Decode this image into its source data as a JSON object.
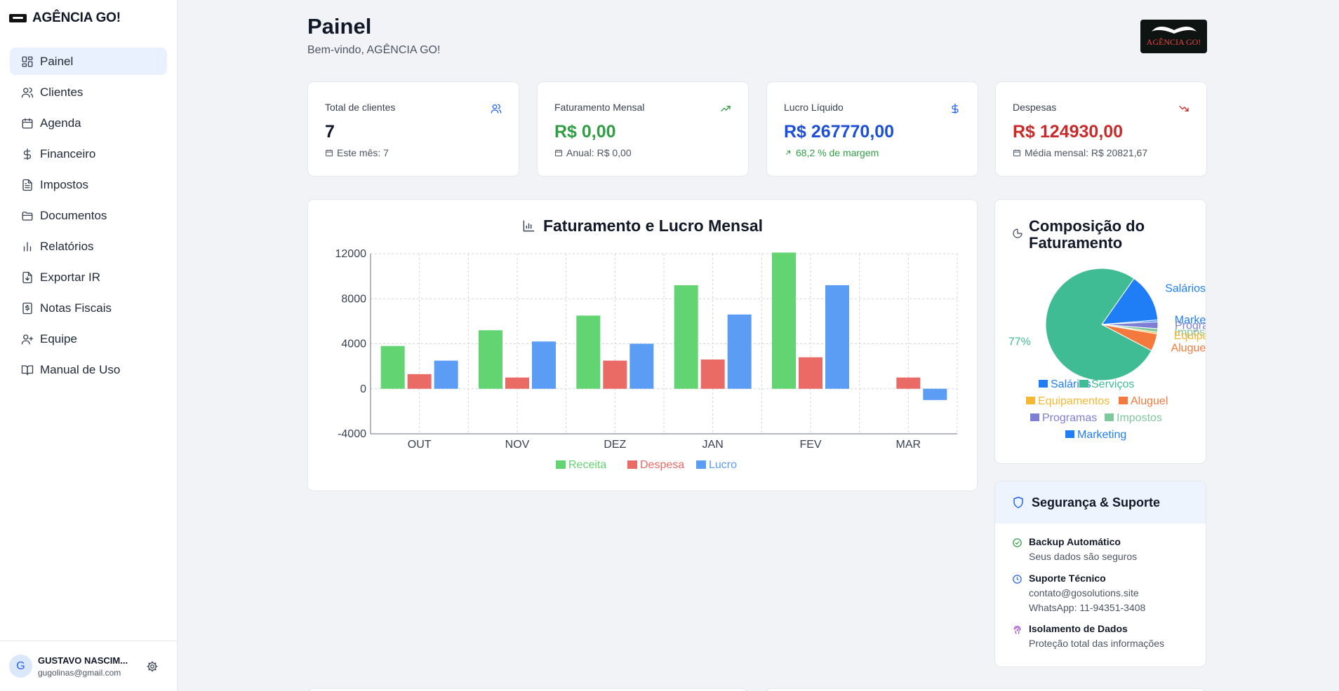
{
  "brand": {
    "name": "AGÊNCIA GO!"
  },
  "sidebar": {
    "items": [
      {
        "label": "Painel",
        "icon": "dashboard-icon",
        "active": true
      },
      {
        "label": "Clientes",
        "icon": "users-icon"
      },
      {
        "label": "Agenda",
        "icon": "calendar-icon"
      },
      {
        "label": "Financeiro",
        "icon": "dollar-icon"
      },
      {
        "label": "Impostos",
        "icon": "document-icon"
      },
      {
        "label": "Documentos",
        "icon": "folder-icon"
      },
      {
        "label": "Relatórios",
        "icon": "bar-chart-icon"
      },
      {
        "label": "Exportar IR",
        "icon": "file-download-icon"
      },
      {
        "label": "Notas Fiscais",
        "icon": "receipt-icon"
      },
      {
        "label": "Equipe",
        "icon": "user-plus-icon"
      },
      {
        "label": "Manual de Uso",
        "icon": "book-icon"
      }
    ]
  },
  "user": {
    "initial": "G",
    "name": "GUSTAVO NASCIM...",
    "email": "gugolinas@gmail.com"
  },
  "header": {
    "title": "Painel",
    "subtitle": "Bem-vindo, AGÊNCIA GO!",
    "logo_text": "AGÊNCIA GO!"
  },
  "stats": [
    {
      "label": "Total de clientes",
      "value": "7",
      "sub": "Este mês: 7",
      "value_color": "#111827",
      "icon": "users-icon"
    },
    {
      "label": "Faturamento Mensal",
      "value": "R$ 0,00",
      "sub": "Anual: R$ 0,00",
      "value_color": "#2f9e44",
      "icon": "trending-up-icon"
    },
    {
      "label": "Lucro Líquido",
      "value": "R$ 267770,00",
      "sub": "68,2 % de margem",
      "value_color": "#1d4ed8",
      "icon": "dollar-icon"
    },
    {
      "label": "Despesas",
      "value": "R$ 124930,00",
      "sub": "Média mensal: R$ 20821,67",
      "value_color": "#c92a2a",
      "icon": "trending-down-icon"
    }
  ],
  "bar_chart": {
    "title": "Faturamento e Lucro Mensal"
  },
  "pie_chart": {
    "title": "Composição do Faturamento"
  },
  "security": {
    "title": "Segurança & Suporte",
    "items": [
      {
        "title": "Backup Automático",
        "lines": [
          "Seus dados são seguros"
        ],
        "icon": "check-circle-icon"
      },
      {
        "title": "Suporte Técnico",
        "lines": [
          "contato@gosolutions.site",
          "WhatsApp: 11-94351-3408"
        ],
        "icon": "clock-icon"
      },
      {
        "title": "Isolamento de Dados",
        "lines": [
          "Proteção total das informações"
        ],
        "icon": "fingerprint-icon"
      }
    ]
  },
  "chart_data": [
    {
      "type": "bar",
      "title": "Faturamento e Lucro Mensal",
      "categories": [
        "OUT",
        "NOV",
        "DEZ",
        "JAN",
        "FEV",
        "MAR"
      ],
      "series": [
        {
          "name": "Receita",
          "color": "#63d472",
          "values": [
            3800,
            5200,
            6500,
            9200,
            12100,
            0
          ]
        },
        {
          "name": "Despesa",
          "color": "#ea6a66",
          "values": [
            1300,
            1000,
            2500,
            2600,
            2800,
            1000
          ]
        },
        {
          "name": "Lucro",
          "color": "#5b9cf5",
          "values": [
            2500,
            4200,
            4000,
            6600,
            9200,
            -1000
          ]
        }
      ],
      "yticks": [
        12000,
        8000,
        4000,
        0,
        -4000
      ],
      "ylim": [
        -4000,
        12000
      ],
      "grid": true,
      "legend": "bottom"
    },
    {
      "type": "pie",
      "title": "Composição do Faturamento",
      "slices": [
        {
          "name": "Salários",
          "value": 14,
          "color": "#1f7ef5"
        },
        {
          "name": "Serviços",
          "value": 77,
          "color": "#3fbc93"
        },
        {
          "name": "Equipamentos",
          "value": 0.5,
          "color": "#f5b833"
        },
        {
          "name": "Aluguel",
          "value": 5,
          "color": "#f37a3c"
        },
        {
          "name": "Programas",
          "value": 2,
          "color": "#7d7fd5"
        },
        {
          "name": "Impostos",
          "value": 1,
          "color": "#7fc79f"
        },
        {
          "name": "Marketing",
          "value": 0.5,
          "color": "#1f7ef5"
        }
      ],
      "visible_percent_label": "77%",
      "legend": "bottom"
    }
  ]
}
